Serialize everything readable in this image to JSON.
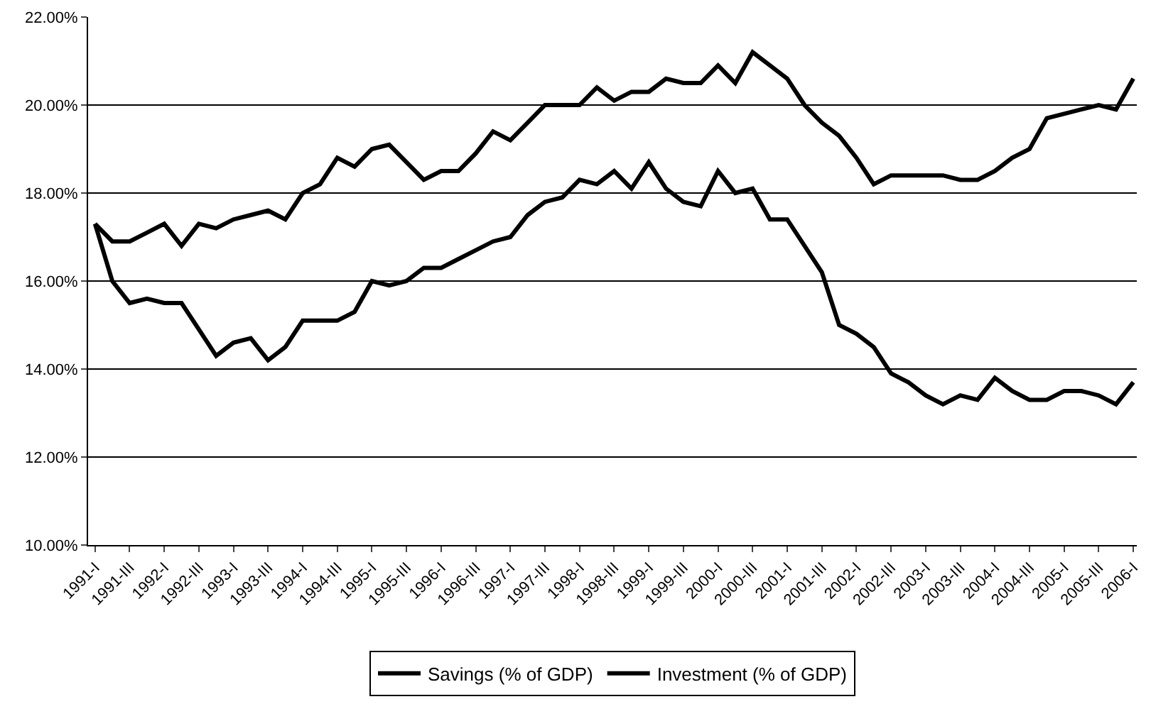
{
  "chart_data": {
    "type": "line",
    "categories": [
      "1991-I",
      null,
      "1991-III",
      null,
      "1992-I",
      null,
      "1992-III",
      null,
      "1993-I",
      null,
      "1993-III",
      null,
      "1994-I",
      null,
      "1994-III",
      null,
      "1995-I",
      null,
      "1995-III",
      null,
      "1996-I",
      null,
      "1996-III",
      null,
      "1997-I",
      null,
      "1997-III",
      null,
      "1998-I",
      null,
      "1998-III",
      null,
      "1999-I",
      null,
      "1999-III",
      null,
      "2000-I",
      null,
      "2000-III",
      null,
      "2001-I",
      null,
      "2001-III",
      null,
      "2002-I",
      null,
      "2002-III",
      null,
      "2003-I",
      null,
      "2003-III",
      null,
      "2004-I",
      null,
      "2004-III",
      null,
      "2005-I",
      null,
      "2005-III",
      null,
      "2006-I"
    ],
    "series": [
      {
        "name": "Savings (% of GDP)",
        "color": "#000000",
        "values": [
          17.3,
          16.0,
          15.5,
          15.6,
          15.5,
          15.5,
          14.9,
          14.3,
          14.6,
          14.7,
          14.2,
          14.5,
          15.1,
          15.1,
          15.1,
          15.3,
          16.0,
          15.9,
          16.0,
          16.3,
          16.3,
          16.5,
          16.7,
          16.9,
          17.0,
          17.5,
          17.8,
          17.9,
          18.3,
          18.2,
          18.5,
          18.1,
          18.7,
          18.1,
          17.8,
          17.7,
          18.5,
          18.0,
          18.1,
          17.4,
          17.4,
          16.8,
          16.2,
          15.0,
          14.8,
          14.5,
          13.9,
          13.7,
          13.4,
          13.2,
          13.4,
          13.3,
          13.8,
          13.5,
          13.3,
          13.3,
          13.5,
          13.5,
          13.4,
          13.2,
          13.7
        ]
      },
      {
        "name": "Investment (% of GDP)",
        "color": "#000000",
        "values": [
          17.3,
          16.9,
          16.9,
          17.1,
          17.3,
          16.8,
          17.3,
          17.2,
          17.4,
          17.5,
          17.6,
          17.4,
          18.0,
          18.2,
          18.8,
          18.6,
          19.0,
          19.1,
          18.7,
          18.3,
          18.5,
          18.5,
          18.9,
          19.4,
          19.2,
          19.6,
          20.0,
          20.0,
          20.0,
          20.4,
          20.1,
          20.3,
          20.3,
          20.6,
          20.5,
          20.5,
          20.9,
          20.5,
          21.2,
          20.9,
          20.6,
          20.0,
          19.6,
          19.3,
          18.8,
          18.2,
          18.4,
          18.4,
          18.4,
          18.4,
          18.3,
          18.3,
          18.5,
          18.8,
          19.0,
          19.7,
          19.8,
          19.9,
          20.0,
          19.9,
          20.6
        ]
      }
    ],
    "ylim": [
      10,
      22
    ],
    "yticks": [
      {
        "value": 10,
        "label": "10.00%"
      },
      {
        "value": 12,
        "label": "12.00%"
      },
      {
        "value": 14,
        "label": "14.00%"
      },
      {
        "value": 16,
        "label": "16.00%"
      },
      {
        "value": 18,
        "label": "18.00%"
      },
      {
        "value": 20,
        "label": "20.00%"
      },
      {
        "value": 22,
        "label": "22.00%"
      }
    ],
    "grid": "y",
    "legend": "bottom",
    "line_style": "solid",
    "marker": "none"
  }
}
